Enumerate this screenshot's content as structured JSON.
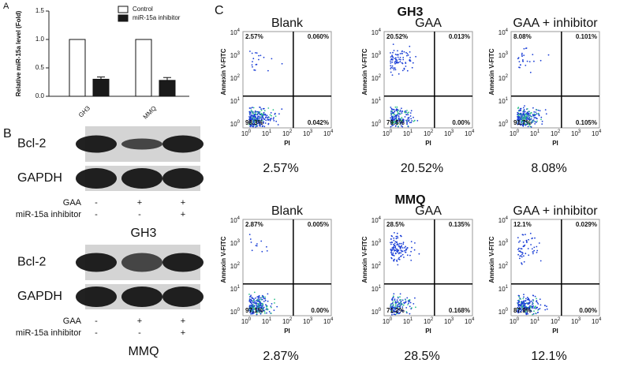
{
  "panels": {
    "a": "A",
    "b": "B",
    "c": "C"
  },
  "chart_data": {
    "type": "bar",
    "ylabel": "Relative miR-15a level (Fold)",
    "categories": [
      "GH3",
      "MMQ"
    ],
    "series": [
      {
        "name": "Control",
        "color": "#ffffff",
        "values": [
          1.0,
          1.0
        ]
      },
      {
        "name": "miR-15a inhibitor",
        "color": "#1a1a1a",
        "values": [
          0.3,
          0.28
        ],
        "errors": [
          0.04,
          0.05
        ]
      }
    ],
    "ylim": [
      0,
      1.5
    ],
    "yticks": [
      {
        "value": 0,
        "label": "0.0"
      },
      {
        "value": 0.5,
        "label": "0.5"
      },
      {
        "value": 1,
        "label": "1.0"
      },
      {
        "value": 1.5,
        "label": "1.5"
      }
    ]
  },
  "western_blots": [
    {
      "cell": "GH3",
      "bands": [
        "Bcl-2",
        "GAPDH"
      ],
      "rows": [
        {
          "label": "GAA",
          "lanes": [
            "-",
            "+",
            "+"
          ]
        },
        {
          "label": "miR-15a inhibitor",
          "lanes": [
            "-",
            "-",
            "+"
          ]
        }
      ]
    },
    {
      "cell": "MMQ",
      "bands": [
        "Bcl-2",
        "GAPDH"
      ],
      "rows": [
        {
          "label": "GAA",
          "lanes": [
            "-",
            "+",
            "+"
          ]
        },
        {
          "label": "miR-15a inhibitor",
          "lanes": [
            "-",
            "-",
            "+"
          ]
        }
      ]
    }
  ],
  "flow_axes": {
    "x": "PI",
    "y": "Annexin V-FITC",
    "tick_base": "10",
    "tick_exponents": [
      "0",
      "1",
      "2",
      "3",
      "4"
    ]
  },
  "flow": [
    {
      "cell": "GH3",
      "plots": [
        {
          "title": "Blank",
          "quadrants": [
            "2.57%",
            "0.060%",
            "98.3%",
            "0.042%"
          ],
          "result": "2.57%"
        },
        {
          "title": "GAA",
          "quadrants": [
            "20.52%",
            "0.013%",
            "79.5%",
            "0.00%"
          ],
          "result": "20.52%"
        },
        {
          "title": "GAA + inhibitor",
          "quadrants": [
            "8.08%",
            "0.101%",
            "91.7%",
            "0.105%"
          ],
          "result": "8.08%"
        }
      ]
    },
    {
      "cell": "MMQ",
      "plots": [
        {
          "title": "Blank",
          "quadrants": [
            "2.87%",
            "0.005%",
            "97.1%",
            "0.00%"
          ],
          "result": "2.87%"
        },
        {
          "title": "GAA",
          "quadrants": [
            "28.5%",
            "0.135%",
            "71.2%",
            "0.168%"
          ],
          "result": "28.5%"
        },
        {
          "title": "GAA + inhibitor",
          "quadrants": [
            "12.1%",
            "0.029%",
            "87.9%",
            "0.00%"
          ],
          "result": "12.1%"
        }
      ]
    }
  ]
}
